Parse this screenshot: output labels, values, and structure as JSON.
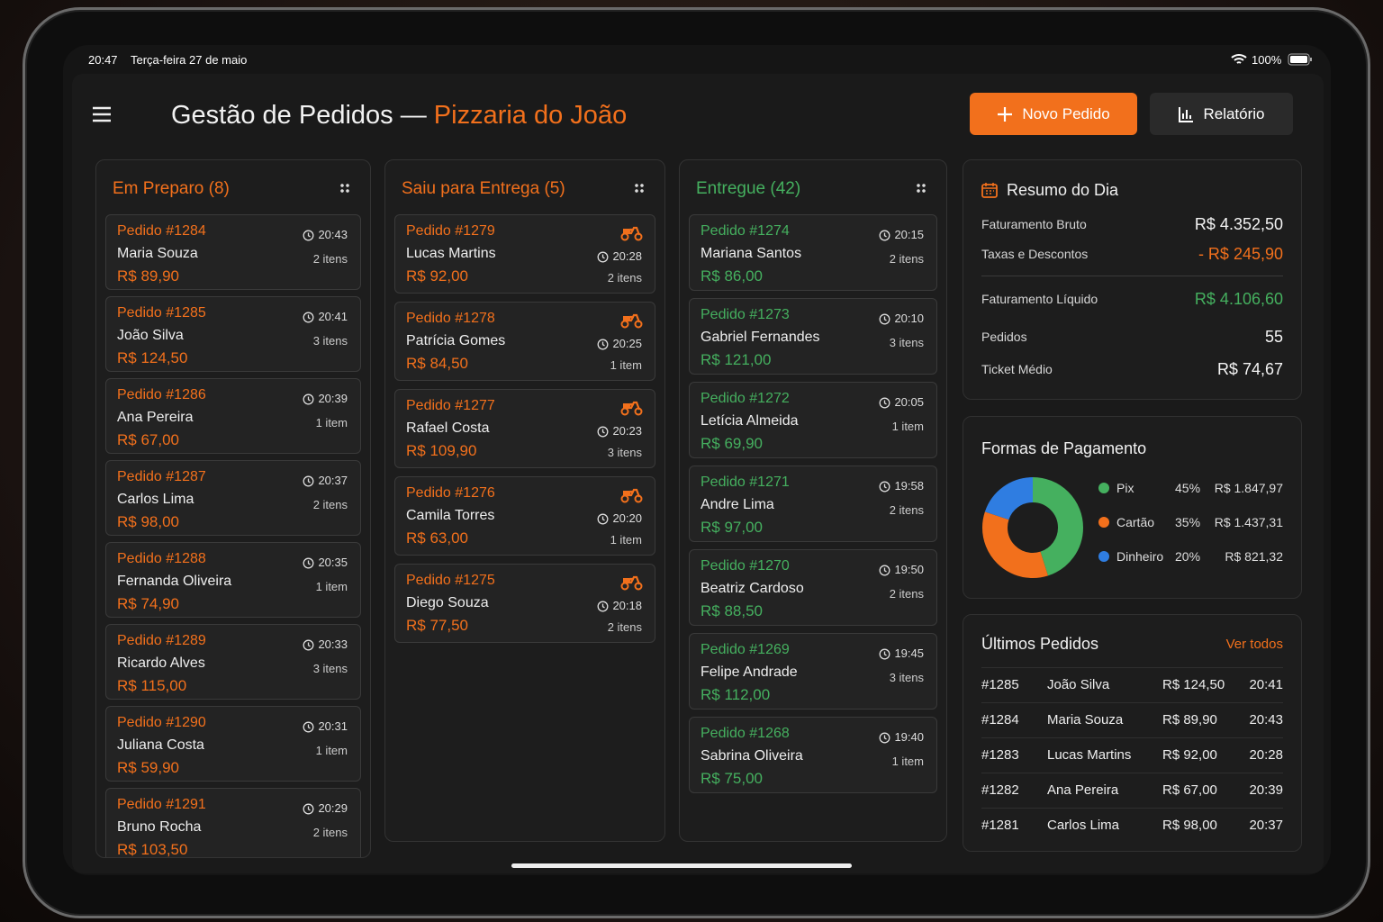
{
  "status_bar": {
    "time": "20:47",
    "date": "Terça-feira 27 de maio",
    "battery": "100%"
  },
  "header": {
    "title": "Gestão de Pedidos —",
    "brand": "Pizzaria do João",
    "new_order": "Novo Pedido",
    "report": "Relatório"
  },
  "columns": [
    {
      "title": "Em Preparo (8)",
      "color": "#f2701c",
      "orders": [
        {
          "id": "Pedido #1284",
          "customer": "Maria Souza",
          "total": "R$ 89,90",
          "time": "20:43",
          "items": "2 itens"
        },
        {
          "id": "Pedido #1285",
          "customer": "João Silva",
          "total": "R$ 124,50",
          "time": "20:41",
          "items": "3 itens"
        },
        {
          "id": "Pedido #1286",
          "customer": "Ana Pereira",
          "total": "R$ 67,00",
          "time": "20:39",
          "items": "1 item"
        },
        {
          "id": "Pedido #1287",
          "customer": "Carlos Lima",
          "total": "R$ 98,00",
          "time": "20:37",
          "items": "2 itens"
        },
        {
          "id": "Pedido #1288",
          "customer": "Fernanda Oliveira",
          "total": "R$ 74,90",
          "time": "20:35",
          "items": "1 item"
        },
        {
          "id": "Pedido #1289",
          "customer": "Ricardo Alves",
          "total": "R$ 115,00",
          "time": "20:33",
          "items": "3 itens"
        },
        {
          "id": "Pedido #1290",
          "customer": "Juliana Costa",
          "total": "R$ 59,90",
          "time": "20:31",
          "items": "1 item"
        },
        {
          "id": "Pedido #1291",
          "customer": "Bruno Rocha",
          "total": "R$ 103,50",
          "time": "20:29",
          "items": "2 itens"
        }
      ]
    },
    {
      "title": "Saiu para Entrega (5)",
      "color": "#f2701c",
      "orders": [
        {
          "id": "Pedido #1279",
          "customer": "Lucas Martins",
          "total": "R$ 92,00",
          "time": "20:28",
          "items": "2 itens"
        },
        {
          "id": "Pedido #1278",
          "customer": "Patrícia Gomes",
          "total": "R$ 84,50",
          "time": "20:25",
          "items": "1 item"
        },
        {
          "id": "Pedido #1277",
          "customer": "Rafael Costa",
          "total": "R$ 109,90",
          "time": "20:23",
          "items": "3 itens"
        },
        {
          "id": "Pedido #1276",
          "customer": "Camila Torres",
          "total": "R$ 63,00",
          "time": "20:20",
          "items": "1 item"
        },
        {
          "id": "Pedido #1275",
          "customer": "Diego Souza",
          "total": "R$ 77,50",
          "time": "20:18",
          "items": "2 itens"
        }
      ]
    },
    {
      "title": "Entregue (42)",
      "color": "#45b05f",
      "orders": [
        {
          "id": "Pedido #1274",
          "customer": "Mariana Santos",
          "total": "R$ 86,00",
          "time": "20:15",
          "items": "2 itens"
        },
        {
          "id": "Pedido #1273",
          "customer": "Gabriel Fernandes",
          "total": "R$ 121,00",
          "time": "20:10",
          "items": "3 itens"
        },
        {
          "id": "Pedido #1272",
          "customer": "Letícia Almeida",
          "total": "R$ 69,90",
          "time": "20:05",
          "items": "1 item"
        },
        {
          "id": "Pedido #1271",
          "customer": "Andre Lima",
          "total": "R$ 97,00",
          "time": "19:58",
          "items": "2 itens"
        },
        {
          "id": "Pedido #1270",
          "customer": "Beatriz Cardoso",
          "total": "R$ 88,50",
          "time": "19:50",
          "items": "2 itens"
        },
        {
          "id": "Pedido #1269",
          "customer": "Felipe Andrade",
          "total": "R$ 112,00",
          "time": "19:45",
          "items": "3 itens"
        },
        {
          "id": "Pedido #1268",
          "customer": "Sabrina Oliveira",
          "total": "R$ 75,00",
          "time": "19:40",
          "items": "1 item"
        }
      ]
    }
  ],
  "summary": {
    "title": "Resumo do Dia",
    "rows": [
      {
        "label": "Faturamento Bruto",
        "value": "R$ 4.352,50"
      },
      {
        "label": "Taxas e Descontos",
        "value": "- R$ 245,90"
      },
      {
        "label": "Faturamento Líquido",
        "value": "R$ 4.106,60"
      },
      {
        "label": "Pedidos",
        "value": "55"
      },
      {
        "label": "Ticket Médio",
        "value": "R$ 74,67"
      }
    ]
  },
  "payments": {
    "type": "pie",
    "title": "Formas de Pagamento",
    "categories": [
      "Pix",
      "Cartão",
      "Dinheiro"
    ],
    "values": [
      45,
      35,
      20
    ],
    "value_labels": [
      "45%",
      "35%",
      "20%"
    ],
    "amounts": [
      "R$ 1.847,97",
      "R$ 1.437,31",
      "R$ 821,32"
    ],
    "colors": [
      "#45b05f",
      "#f2701c",
      "#2f7de1"
    ]
  },
  "latest": {
    "title": "Últimos Pedidos",
    "link": "Ver todos",
    "rows": [
      [
        "#1285",
        "João Silva",
        "R$ 124,50",
        "20:41"
      ],
      [
        "#1284",
        "Maria Souza",
        "R$ 89,90",
        "20:43"
      ],
      [
        "#1283",
        "Lucas Martins",
        "R$ 92,00",
        "20:28"
      ],
      [
        "#1282",
        "Ana Pereira",
        "R$ 67,00",
        "20:39"
      ],
      [
        "#1281",
        "Carlos Lima",
        "R$ 98,00",
        "20:37"
      ]
    ]
  }
}
